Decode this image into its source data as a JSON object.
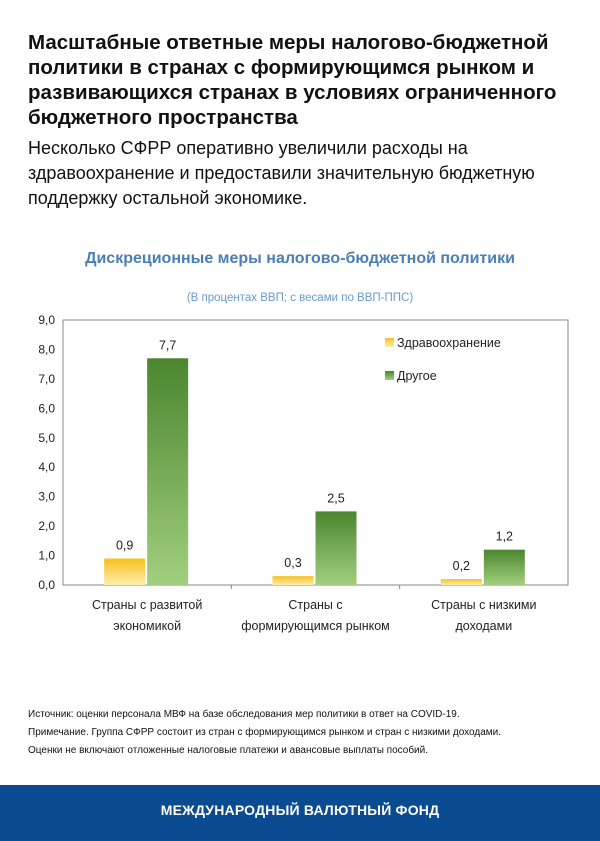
{
  "header": {
    "title": "Масштабные ответные меры налогово-бюджетной политики в странах с формирующимся рынком и развивающихся странах в условиях ограниченного бюджетного пространства",
    "subtitle": "Несколько СФРР оперативно увеличили расходы на здравоохранение и предоставили значительную бюджетную поддержку остальной экономике."
  },
  "chart_data": {
    "type": "bar",
    "title": "Дискреционные меры налогово-бюджетной политики",
    "subtitle": "(В процентах ВВП; с весами по ВВП-ППС)",
    "categories": [
      [
        "Страны с развитой",
        "экономикой"
      ],
      [
        "Страны с",
        "формирующимся рынком"
      ],
      [
        "Страны с низкими",
        "доходами"
      ]
    ],
    "series": [
      {
        "name": "Здравоохранение",
        "values": [
          0.9,
          0.3,
          0.2
        ],
        "labels": [
          "0,9",
          "0,3",
          "0,2"
        ],
        "color": "#f6c22a"
      },
      {
        "name": "Другое",
        "values": [
          7.7,
          2.5,
          1.2
        ],
        "labels": [
          "7,7",
          "2,5",
          "1,2"
        ],
        "color": "#4f8f34"
      }
    ],
    "ylim": [
      0,
      9
    ],
    "yticks": [
      "0,0",
      "1,0",
      "2,0",
      "3,0",
      "4,0",
      "5,0",
      "6,0",
      "7,0",
      "8,0",
      "9,0"
    ],
    "grid": false,
    "legend": "top-right"
  },
  "notes": [
    "Источник: оценки персонала МВФ на базе обследования мер политики в ответ на COVID-19.",
    "Примечание. Группа СФРР состоит из стран с формирующимся рынком и стран с низкими доходами.",
    "Оценки не включают отложенные налоговые платежи и авансовые выплаты пособий."
  ],
  "footer": {
    "label": "МЕЖДУНАРОДНЫЙ ВАЛЮТНЫЙ ФОНД",
    "color": "#0b4b92"
  }
}
